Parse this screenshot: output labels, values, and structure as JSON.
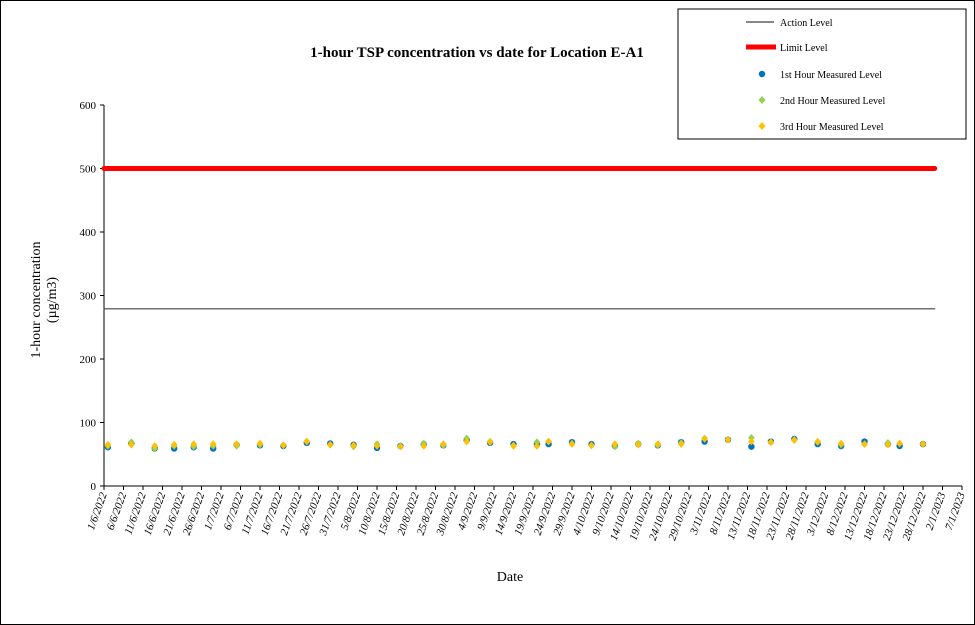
{
  "chart_data": {
    "type": "scatter",
    "title": "1-hour TSP concentration vs date for Location E-A1",
    "xlabel": "Date",
    "ylabel": [
      "1-hour concentration",
      "(µg/m3)"
    ],
    "ylim": [
      0,
      600
    ],
    "yticks": [
      "0",
      "100",
      "200",
      "300",
      "400",
      "500",
      "600"
    ],
    "xlim": [
      "1/6/2022",
      "7/1/2023"
    ],
    "xticks": [
      "1/6/2022",
      "6/6/2022",
      "11/6/2022",
      "16/6/2022",
      "21/6/2022",
      "26/6/2022",
      "1/7/2022",
      "6/7/2022",
      "11/7/2022",
      "16/7/2022",
      "21/7/2022",
      "26/7/2022",
      "31/7/2022",
      "5/8/2022",
      "10/8/2022",
      "15/8/2022",
      "20/8/2022",
      "25/8/2022",
      "30/8/2022",
      "4/9/2022",
      "9/9/2022",
      "14/9/2022",
      "19/9/2022",
      "24/9/2022",
      "29/9/2022",
      "4/10/2022",
      "9/10/2022",
      "14/10/2022",
      "19/10/2022",
      "24/10/2022",
      "29/10/2022",
      "3/11/2022",
      "8/11/2022",
      "13/11/2022",
      "18/11/2022",
      "23/11/2022",
      "28/11/2022",
      "3/12/2022",
      "8/12/2022",
      "13/12/2022",
      "18/12/2022",
      "23/12/2022",
      "28/12/2022",
      "2/1/2023",
      "7/1/2023"
    ],
    "grid": false,
    "legend_position": "top-right",
    "reference_lines": [
      {
        "name": "Action Level",
        "value": 279,
        "from": "1/6/2022",
        "to": "31/12/2022",
        "color": "#404040"
      },
      {
        "name": "Limit Level",
        "value": 500,
        "from": "1/6/2022",
        "to": "31/12/2022",
        "color": "#ff0000"
      }
    ],
    "x": [
      "2/6/2022",
      "8/6/2022",
      "14/6/2022",
      "19/6/2022",
      "24/6/2022",
      "29/6/2022",
      "5/7/2022",
      "11/7/2022",
      "17/7/2022",
      "23/7/2022",
      "29/7/2022",
      "4/8/2022",
      "10/8/2022",
      "16/8/2022",
      "22/8/2022",
      "27/8/2022",
      "2/9/2022",
      "8/9/2022",
      "14/9/2022",
      "20/9/2022",
      "23/9/2022",
      "29/9/2022",
      "4/10/2022",
      "10/10/2022",
      "16/10/2022",
      "21/10/2022",
      "27/10/2022",
      "2/11/2022",
      "8/11/2022",
      "14/11/2022",
      "19/11/2022",
      "25/11/2022",
      "1/12/2022",
      "7/12/2022",
      "13/12/2022",
      "19/12/2022",
      "22/12/2022",
      "28/12/2022"
    ],
    "series": [
      {
        "name": "1st Hour Measured Level",
        "color": "#0070c0",
        "marker": "circle",
        "values": [
          61,
          67,
          59,
          59,
          61,
          59,
          65,
          64,
          63,
          68,
          67,
          65,
          60,
          63,
          66,
          64,
          72,
          68,
          66,
          66,
          66,
          69,
          66,
          63,
          66,
          64,
          69,
          70,
          73,
          62,
          70,
          74,
          66,
          63,
          70,
          66,
          63,
          66
        ]
      },
      {
        "name": "2nd Hour Measured Level",
        "color": "#92d050",
        "marker": "diamond",
        "values": [
          63,
          69,
          59,
          63,
          62,
          63,
          63,
          65,
          64,
          70,
          65,
          62,
          66,
          63,
          67,
          64,
          75,
          70,
          64,
          69,
          70,
          67,
          64,
          62,
          67,
          64,
          68,
          75,
          73,
          76,
          69,
          73,
          69,
          65,
          66,
          68,
          67,
          66
        ]
      },
      {
        "name": "3rd Hour Measured Level",
        "color": "#ffc000",
        "marker": "diamond",
        "values": [
          65,
          65,
          63,
          65,
          66,
          66,
          66,
          67,
          64,
          70,
          65,
          64,
          63,
          62,
          63,
          66,
          70,
          69,
          63,
          63,
          70,
          66,
          64,
          66,
          65,
          66,
          66,
          74,
          73,
          70,
          69,
          72,
          70,
          67,
          66,
          65,
          67,
          66
        ]
      }
    ]
  }
}
